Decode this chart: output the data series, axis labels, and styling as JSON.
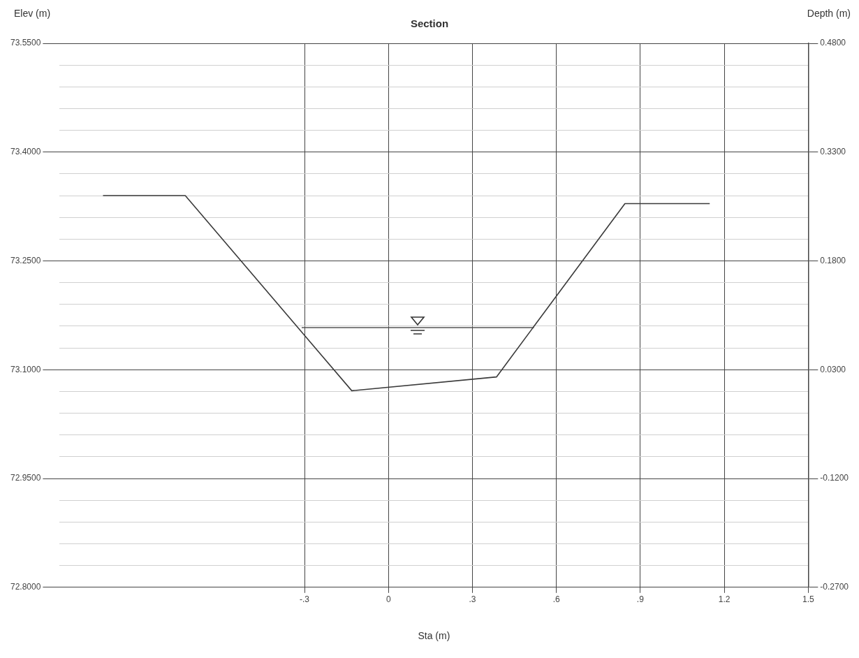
{
  "chart_data": {
    "type": "line",
    "title": "Section",
    "xlabel": "Sta (m)",
    "ylabel": "Elev (m)",
    "y2label": "Depth (m)",
    "xlim": [
      -1.175,
      1.5
    ],
    "xticks": [
      {
        "value": -0.3,
        "label": "-.3"
      },
      0,
      {
        "value": 0.3,
        "label": ".3"
      },
      {
        "value": 0.6,
        "label": ".6"
      },
      {
        "value": 0.9,
        "label": ".9"
      },
      1.2,
      1.5
    ],
    "ylim": [
      72.8,
      73.55
    ],
    "yticks": [
      {
        "value": 72.8,
        "label": "72.8000"
      },
      {
        "value": 72.83,
        "label": null
      },
      {
        "value": 72.86,
        "label": null
      },
      {
        "value": 72.89,
        "label": null
      },
      {
        "value": 72.92,
        "label": null
      },
      {
        "value": 72.95,
        "label": "72.9500"
      },
      {
        "value": 72.98,
        "label": null
      },
      {
        "value": 73.01,
        "label": null
      },
      {
        "value": 73.04,
        "label": null
      },
      {
        "value": 73.07,
        "label": null
      },
      {
        "value": 73.1,
        "label": "73.1000"
      },
      {
        "value": 73.13,
        "label": null
      },
      {
        "value": 73.16,
        "label": null
      },
      {
        "value": 73.19,
        "label": null
      },
      {
        "value": 73.22,
        "label": null
      },
      {
        "value": 73.25,
        "label": "73.2500"
      },
      {
        "value": 73.28,
        "label": null
      },
      {
        "value": 73.31,
        "label": null
      },
      {
        "value": 73.34,
        "label": null
      },
      {
        "value": 73.37,
        "label": null
      },
      {
        "value": 73.4,
        "label": "73.4000"
      },
      {
        "value": 73.43,
        "label": null
      },
      {
        "value": 73.46,
        "label": null
      },
      {
        "value": 73.49,
        "label": null
      },
      {
        "value": 73.52,
        "label": null
      },
      {
        "value": 73.55,
        "label": "73.5500"
      }
    ],
    "y2lim": [
      -0.27,
      0.48
    ],
    "y2ticks": [
      {
        "value": -0.27,
        "label": "-0.2700"
      },
      {
        "value": -0.12,
        "label": "-0.1200"
      },
      {
        "value": 0.03,
        "label": "0.0300"
      },
      {
        "value": 0.18,
        "label": "0.1800"
      },
      {
        "value": 0.33,
        "label": "0.3300"
      },
      {
        "value": 0.48,
        "label": "0.4800"
      }
    ],
    "grid": true,
    "marker": "none",
    "line_style": "solid",
    "series": [
      {
        "color": "#3a3a3a",
        "x": [
          -1.02,
          -0.726,
          -0.131,
          0.386,
          0.845,
          1.148
        ],
        "values": [
          73.34,
          73.34,
          73.071,
          73.09,
          73.329,
          73.329
        ]
      },
      {
        "color": "#555555",
        "x": [
          -0.31,
          0.52
        ],
        "values": [
          73.158,
          73.158
        ]
      }
    ]
  }
}
